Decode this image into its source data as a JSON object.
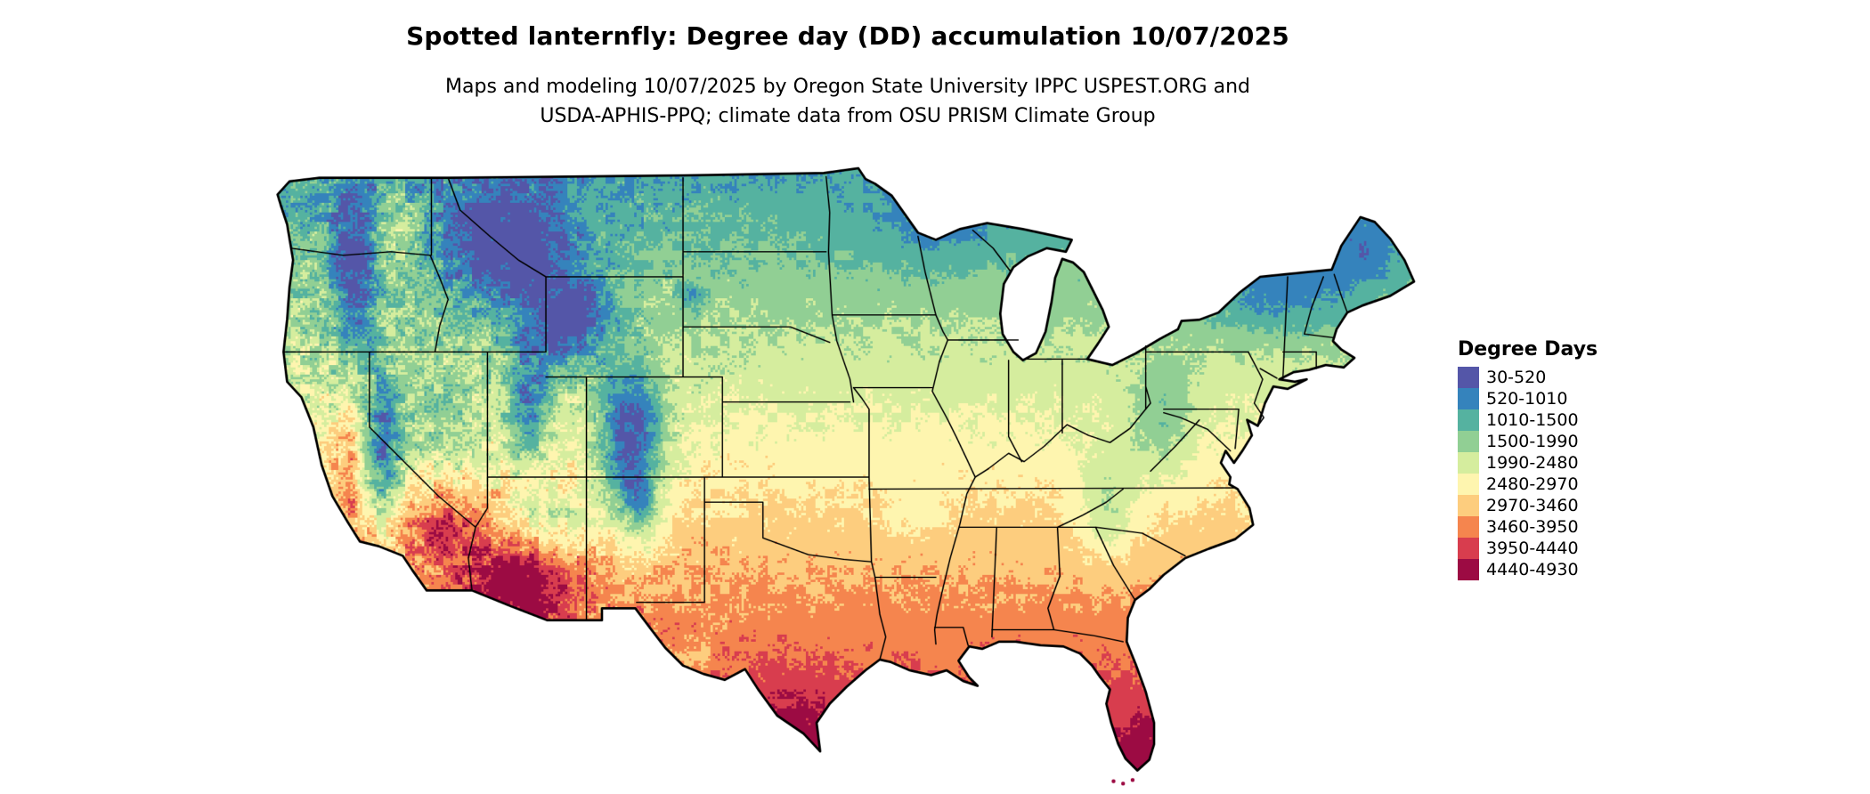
{
  "header": {
    "title": "Spotted lanternfly: Degree day (DD) accumulation 10/07/2025",
    "subtitle_line1": "Maps and modeling 10/07/2025 by Oregon State University IPPC USPEST.ORG and",
    "subtitle_line2": "USDA-APHIS-PPQ; climate data from OSU PRISM Climate Group"
  },
  "legend": {
    "title": "Degree Days",
    "entries": [
      {
        "label": "30-520",
        "min": 30,
        "max": 520,
        "color": "#5456a8"
      },
      {
        "label": "520-1010",
        "min": 520,
        "max": 1010,
        "color": "#3583bc"
      },
      {
        "label": "1010-1500",
        "min": 1010,
        "max": 1500,
        "color": "#55b2a0"
      },
      {
        "label": "1500-1990",
        "min": 1500,
        "max": 1990,
        "color": "#91cf94"
      },
      {
        "label": "1990-2480",
        "min": 1990,
        "max": 2480,
        "color": "#d5ed9e"
      },
      {
        "label": "2480-2970",
        "min": 2480,
        "max": 2970,
        "color": "#fef5af"
      },
      {
        "label": "2970-3460",
        "min": 2970,
        "max": 3460,
        "color": "#fdcd7e"
      },
      {
        "label": "3460-3950",
        "min": 3460,
        "max": 3950,
        "color": "#f5854e"
      },
      {
        "label": "3950-4440",
        "min": 3950,
        "max": 4440,
        "color": "#d83d4e"
      },
      {
        "label": "4440-4930",
        "min": 4440,
        "max": 4930,
        "color": "#9c0b43"
      }
    ]
  },
  "map": {
    "region": "Continental United States",
    "kind": "degree-day accumulation raster with state boundaries"
  }
}
